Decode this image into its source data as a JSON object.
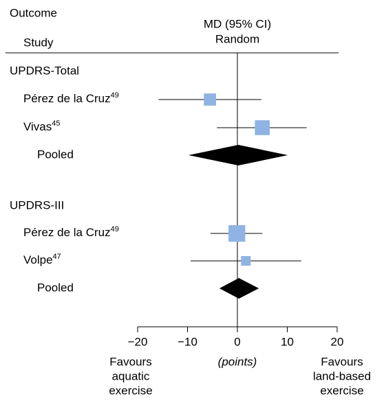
{
  "header": {
    "outcome": "Outcome",
    "study": "Study",
    "measure": "MD (95% CI)",
    "model": "Random"
  },
  "chart_data": {
    "type": "forest",
    "xlim": [
      -20,
      20
    ],
    "xticks": [
      {
        "value": -20,
        "label": "−20"
      },
      {
        "value": -10,
        "label": "−10"
      },
      0,
      10,
      20
    ],
    "x_label": "(points)",
    "left_label": [
      "Favours",
      "aquatic",
      "exercise"
    ],
    "right_label": [
      "Favours",
      "land-based",
      "exercise"
    ],
    "marker_color": "#8fb4e3",
    "pooled_color": "#000000",
    "groups": [
      {
        "name": "UPDRS-Total",
        "studies": [
          {
            "name": "Pérez de la Cruz",
            "ref": "49",
            "estimate": -5.5,
            "ci": [
              -15.8,
              4.8
            ],
            "weight": 40
          },
          {
            "name": "Vivas",
            "ref": "45",
            "estimate": 5.0,
            "ci": [
              -4.1,
              13.9
            ],
            "weight": 60
          }
        ],
        "pooled": {
          "name": "Pooled",
          "estimate": 0.2,
          "ci": [
            -9.8,
            10.1
          ]
        }
      },
      {
        "name": "UPDRS-III",
        "studies": [
          {
            "name": "Pérez de la Cruz",
            "ref": "49",
            "estimate": -0.1,
            "ci": [
              -5.4,
              5.0
            ],
            "weight": 75
          },
          {
            "name": "Volpe",
            "ref": "47",
            "estimate": 1.7,
            "ci": [
              -9.4,
              12.8
            ],
            "weight": 25
          }
        ],
        "pooled": {
          "name": "Pooled",
          "estimate": 0.3,
          "ci": [
            -3.6,
            4.3
          ]
        }
      }
    ]
  }
}
